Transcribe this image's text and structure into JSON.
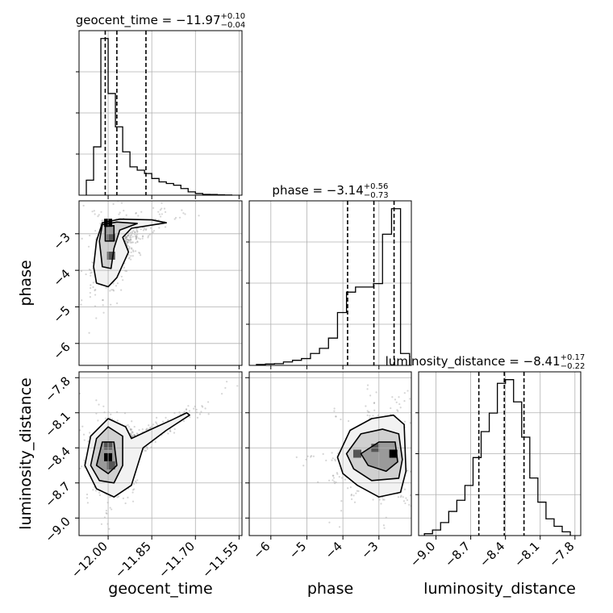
{
  "chart_data": {
    "type": "corner",
    "parameters": [
      "geocent_time",
      "phase",
      "luminosity_distance"
    ],
    "panels": {
      "geocent_time": {
        "title": "geocent_time = −11.97",
        "title_sup": "+0.10",
        "title_sub": "−0.04",
        "range": [
          -12.1,
          -11.54
        ],
        "ticks": [
          -12.0,
          -11.85,
          -11.7,
          -11.55
        ],
        "tick_labels": [
          "−12.00",
          "−11.85",
          "−11.70",
          "−11.55"
        ],
        "axis_label": "geocent_time",
        "quantiles": [
          -12.01,
          -11.97,
          -11.87
        ],
        "hist_edges": [
          -12.075,
          -12.05,
          -12.025,
          -12.0,
          -11.975,
          -11.95,
          -11.925,
          -11.9,
          -11.875,
          -11.85,
          -11.825,
          -11.8,
          -11.775,
          -11.75,
          -11.725,
          -11.7,
          -11.675,
          -11.65,
          -11.625,
          -11.6,
          -11.575
        ],
        "hist_values": [
          0.09,
          0.29,
          0.94,
          0.61,
          0.41,
          0.26,
          0.17,
          0.15,
          0.13,
          0.1,
          0.08,
          0.07,
          0.06,
          0.04,
          0.02,
          0.01,
          0.005,
          0.004,
          0.002,
          0.001
        ]
      },
      "phase": {
        "title": "phase = −3.14",
        "title_sup": "+0.56",
        "title_sub": "−0.73",
        "range": [
          -6.6,
          -2.1
        ],
        "ticks": [
          -6,
          -5,
          -4,
          -3
        ],
        "tick_labels": [
          "−6",
          "−5",
          "−4",
          "−3"
        ],
        "axis_label": "phase",
        "quantiles": [
          -3.87,
          -3.14,
          -2.58
        ],
        "hist_edges": [
          -6.4,
          -6.15,
          -5.9,
          -5.65,
          -5.4,
          -5.15,
          -4.9,
          -4.65,
          -4.4,
          -4.15,
          -3.9,
          -3.65,
          -3.4,
          -3.15,
          -2.9,
          -2.65,
          -2.4,
          -2.15
        ],
        "hist_values": [
          0.005,
          0.008,
          0.01,
          0.02,
          0.03,
          0.04,
          0.07,
          0.1,
          0.16,
          0.31,
          0.43,
          0.46,
          0.46,
          0.48,
          0.77,
          0.92,
          0.07
        ]
      },
      "luminosity_distance": {
        "title": "luminosity_distance = −8.41",
        "title_sup": "+0.17",
        "title_sub": "−0.22",
        "range": [
          -9.15,
          -7.75
        ],
        "ticks": [
          -9.0,
          -8.7,
          -8.4,
          -8.1,
          -7.8
        ],
        "tick_labels": [
          "−9.0",
          "−8.7",
          "−8.4",
          "−8.1",
          "−7.8"
        ],
        "axis_label": "luminosity_distance",
        "quantiles": [
          -8.63,
          -8.41,
          -8.24
        ],
        "hist_edges": [
          -9.1,
          -9.03,
          -8.96,
          -8.89,
          -8.82,
          -8.75,
          -8.68,
          -8.61,
          -8.54,
          -8.47,
          -8.4,
          -8.33,
          -8.26,
          -8.19,
          -8.12,
          -8.05,
          -7.98,
          -7.91,
          -7.84
        ],
        "hist_values": [
          0.01,
          0.03,
          0.07,
          0.13,
          0.19,
          0.27,
          0.42,
          0.56,
          0.66,
          0.82,
          0.84,
          0.72,
          0.53,
          0.31,
          0.18,
          0.09,
          0.05,
          0.02
        ]
      }
    },
    "scatter_2d": [
      {
        "x": "geocent_time",
        "y": "phase",
        "contours": [
          [
            [
              -12.04,
              -4.35
            ],
            [
              -12.05,
              -3.9
            ],
            [
              -12.04,
              -3.2
            ],
            [
              -12.02,
              -2.7
            ],
            [
              -11.96,
              -2.6
            ],
            [
              -11.85,
              -2.62
            ],
            [
              -11.8,
              -2.7
            ],
            [
              -11.92,
              -2.85
            ],
            [
              -11.95,
              -3.1
            ],
            [
              -11.93,
              -3.5
            ],
            [
              -11.97,
              -4.2
            ],
            [
              -12.0,
              -4.45
            ]
          ],
          [
            [
              -12.02,
              -3.9
            ],
            [
              -12.03,
              -3.2
            ],
            [
              -12.02,
              -2.75
            ],
            [
              -11.97,
              -2.68
            ],
            [
              -11.9,
              -2.72
            ],
            [
              -11.96,
              -2.9
            ],
            [
              -11.98,
              -3.4
            ],
            [
              -11.99,
              -3.95
            ]
          ],
          [
            [
              -12.01,
              -3.2
            ],
            [
              -12.01,
              -2.8
            ],
            [
              -11.98,
              -2.78
            ],
            [
              -11.98,
              -3.2
            ]
          ]
        ],
        "density_peaks": [
          [
            -12.0,
            -2.7
          ],
          [
            -11.99,
            -3.1
          ],
          [
            -11.99,
            -3.6
          ]
        ]
      },
      {
        "x": "geocent_time",
        "y": "luminosity_distance",
        "contours": [
          [
            [
              -12.08,
              -8.55
            ],
            [
              -12.06,
              -8.3
            ],
            [
              -12.0,
              -8.15
            ],
            [
              -11.94,
              -8.22
            ],
            [
              -11.92,
              -8.32
            ],
            [
              -11.86,
              -8.25
            ],
            [
              -11.78,
              -8.16
            ],
            [
              -11.73,
              -8.1
            ],
            [
              -11.72,
              -8.12
            ],
            [
              -11.8,
              -8.25
            ],
            [
              -11.88,
              -8.4
            ],
            [
              -11.92,
              -8.72
            ],
            [
              -11.98,
              -8.82
            ],
            [
              -12.04,
              -8.75
            ]
          ],
          [
            [
              -12.06,
              -8.55
            ],
            [
              -12.04,
              -8.32
            ],
            [
              -12.0,
              -8.22
            ],
            [
              -11.95,
              -8.3
            ],
            [
              -11.95,
              -8.55
            ],
            [
              -11.98,
              -8.7
            ],
            [
              -12.03,
              -8.68
            ]
          ],
          [
            [
              -12.04,
              -8.55
            ],
            [
              -12.02,
              -8.35
            ],
            [
              -11.98,
              -8.35
            ],
            [
              -11.97,
              -8.55
            ],
            [
              -12.0,
              -8.62
            ]
          ]
        ],
        "density_peaks": [
          [
            -12.0,
            -8.48
          ],
          [
            -12.0,
            -8.38
          ],
          [
            -11.99,
            -8.55
          ]
        ]
      },
      {
        "x": "phase",
        "y": "luminosity_distance",
        "contours": [
          [
            [
              -4.15,
              -8.48
            ],
            [
              -3.8,
              -8.25
            ],
            [
              -3.2,
              -8.15
            ],
            [
              -2.6,
              -8.12
            ],
            [
              -2.3,
              -8.2
            ],
            [
              -2.25,
              -8.6
            ],
            [
              -2.4,
              -8.78
            ],
            [
              -3.0,
              -8.82
            ],
            [
              -3.6,
              -8.72
            ],
            [
              -4.0,
              -8.62
            ]
          ],
          [
            [
              -3.9,
              -8.45
            ],
            [
              -3.5,
              -8.28
            ],
            [
              -2.9,
              -8.24
            ],
            [
              -2.45,
              -8.28
            ],
            [
              -2.35,
              -8.5
            ],
            [
              -2.45,
              -8.66
            ],
            [
              -3.2,
              -8.68
            ],
            [
              -3.7,
              -8.58
            ]
          ],
          [
            [
              -3.5,
              -8.45
            ],
            [
              -3.0,
              -8.35
            ],
            [
              -2.55,
              -8.35
            ],
            [
              -2.48,
              -8.52
            ],
            [
              -2.8,
              -8.6
            ],
            [
              -3.3,
              -8.55
            ]
          ]
        ],
        "density_peaks": [
          [
            -2.6,
            -8.45
          ],
          [
            -3.1,
            -8.4
          ],
          [
            -3.6,
            -8.45
          ]
        ]
      }
    ]
  }
}
